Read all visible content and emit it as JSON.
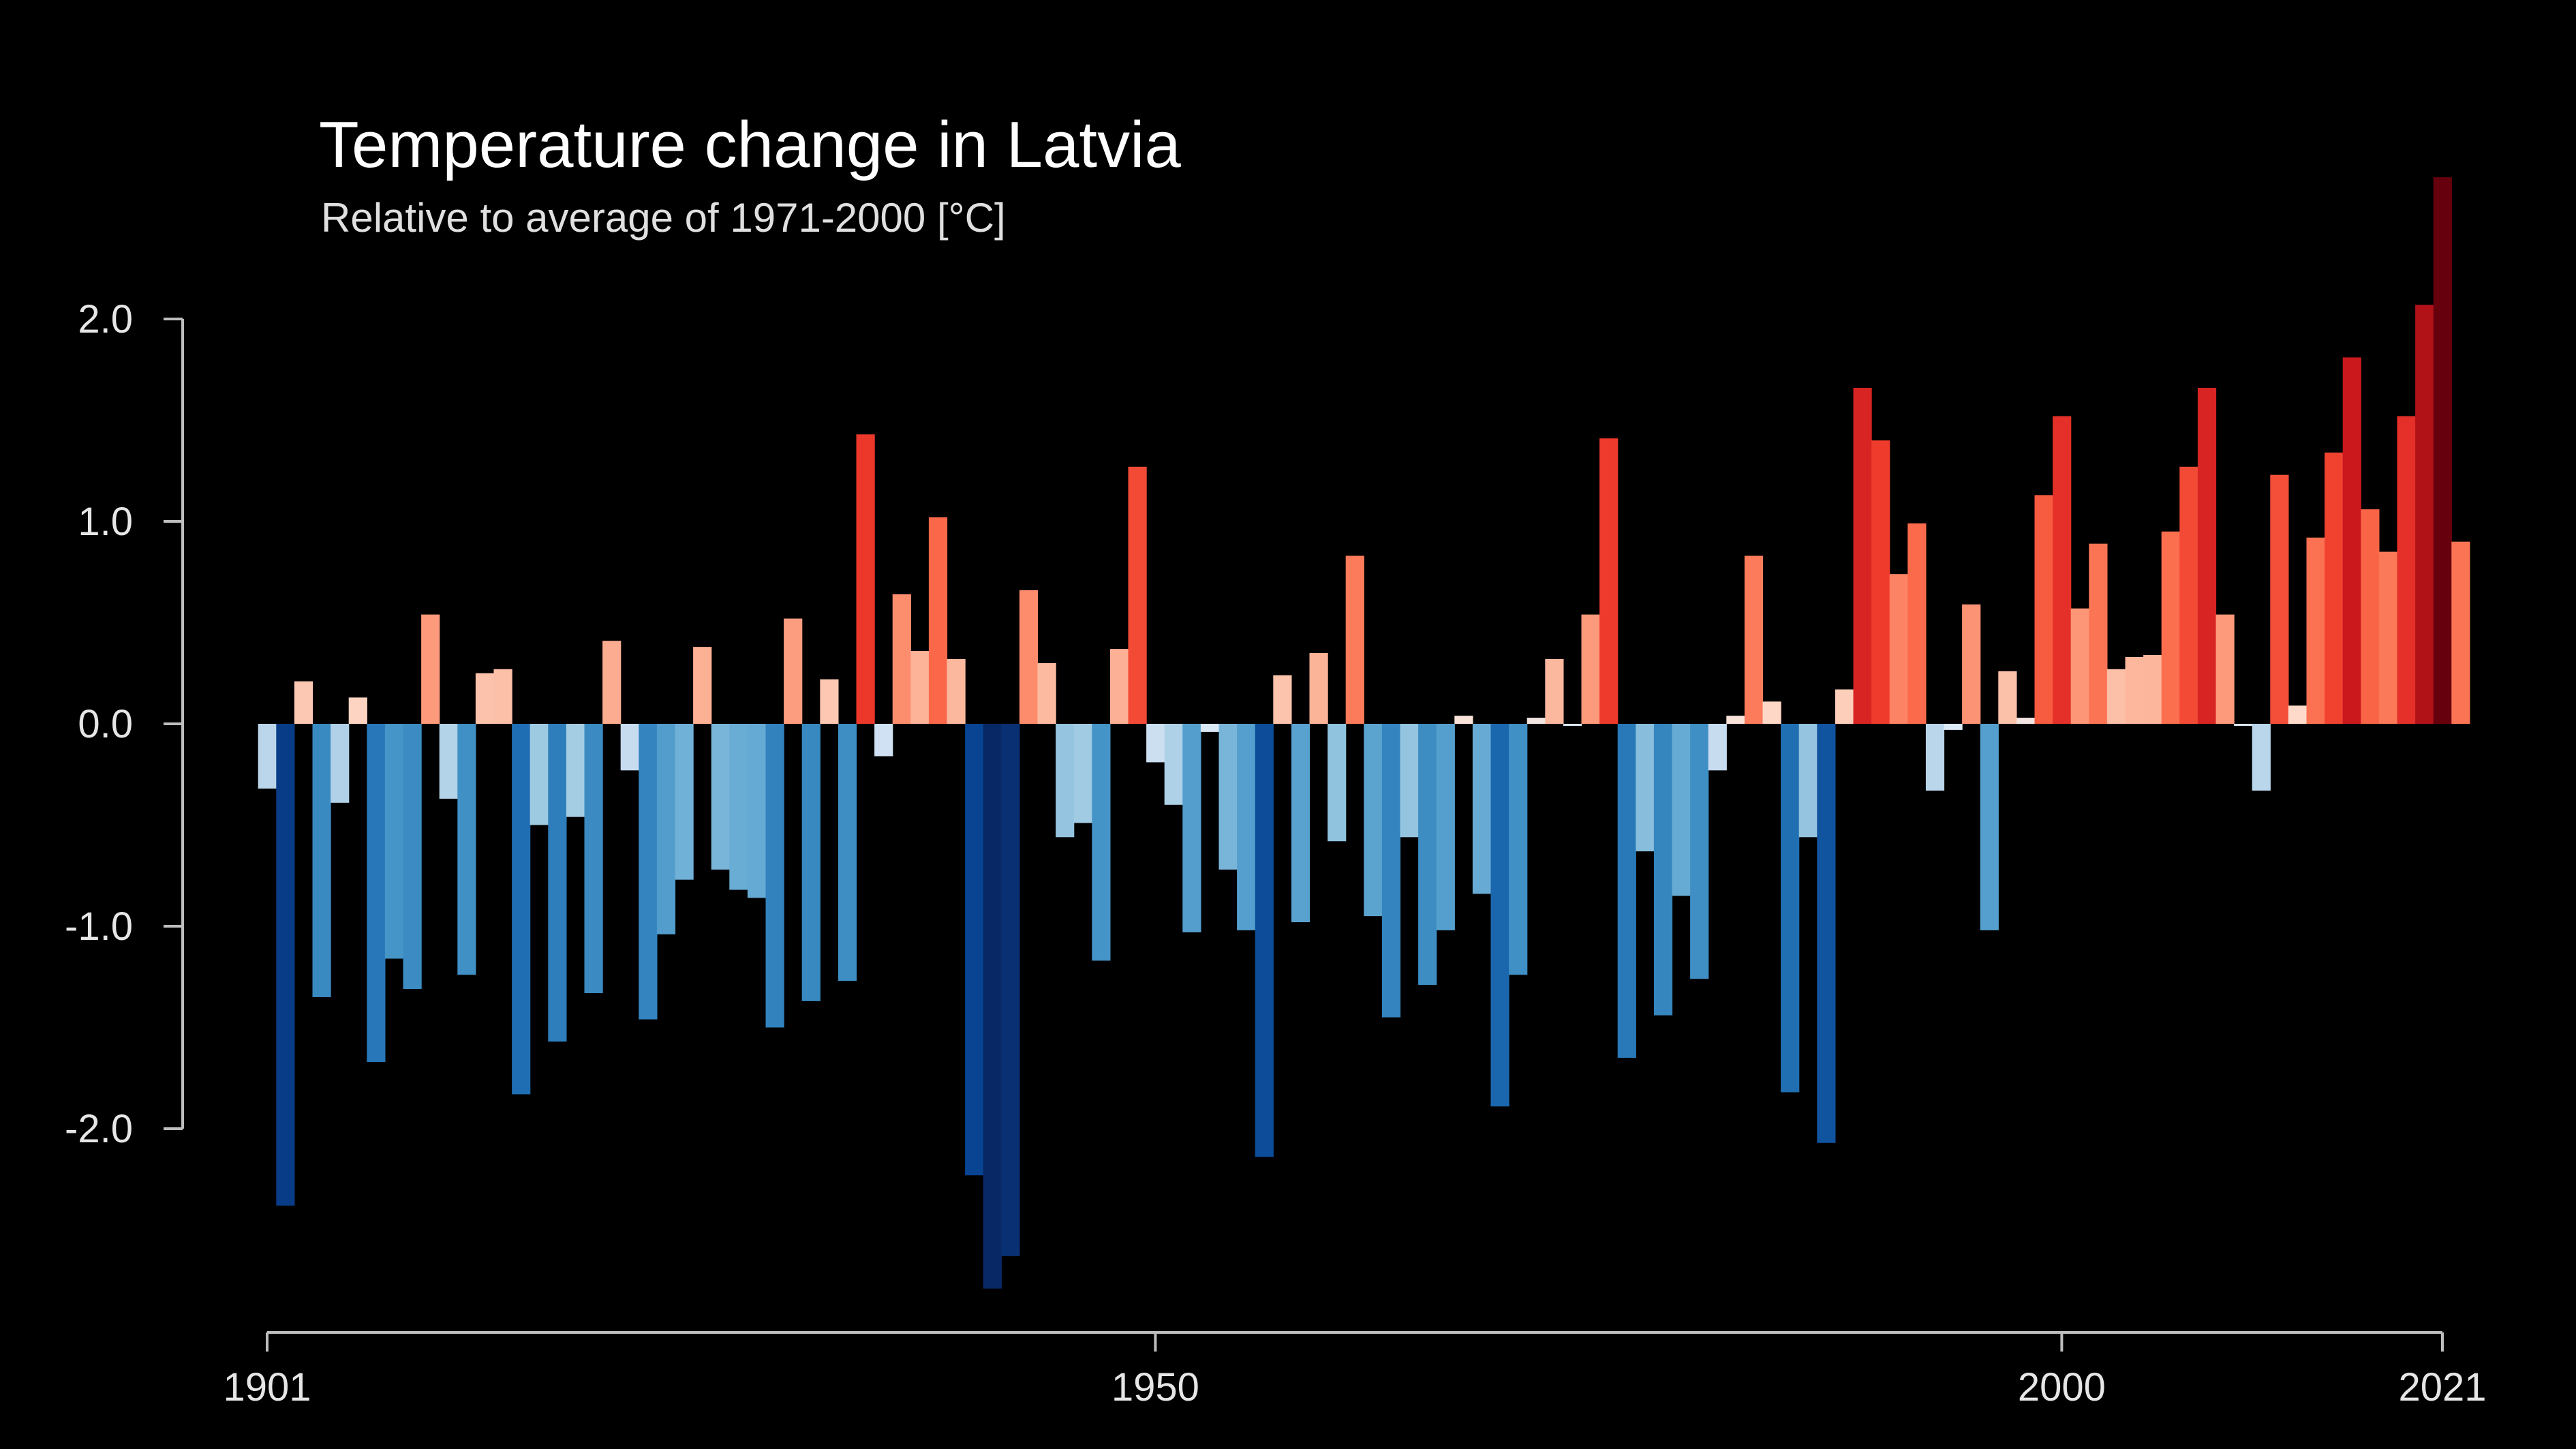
{
  "chart_data": {
    "type": "bar",
    "title": "Temperature change in Latvia",
    "subtitle": "Relative to average of 1971-2000  [°C]",
    "xlabel": "",
    "ylabel": "",
    "xlim": [
      1901,
      2021
    ],
    "ylim": [
      -2.8,
      2.7
    ],
    "y_ticks": [
      "2.0",
      "1.0",
      "0.0",
      "-1.0",
      "-2.0"
    ],
    "x_ticks": [
      "1901",
      "1950",
      "2000",
      "2021"
    ],
    "grid": false,
    "legend": "none",
    "start_year": 1901,
    "values": [
      -0.32,
      -2.38,
      0.21,
      -1.35,
      -0.39,
      0.13,
      -1.67,
      -1.16,
      -1.31,
      0.54,
      -0.37,
      -1.24,
      0.25,
      0.27,
      -1.83,
      -0.5,
      -1.57,
      -0.46,
      -1.33,
      0.41,
      -0.23,
      -1.46,
      -1.04,
      -0.77,
      0.38,
      -0.72,
      -0.82,
      -0.86,
      -1.5,
      0.52,
      -1.37,
      0.22,
      -1.27,
      1.43,
      -0.16,
      0.64,
      0.36,
      1.02,
      0.32,
      -2.23,
      -2.79,
      -2.63,
      0.66,
      0.3,
      -0.56,
      -0.49,
      -1.17,
      0.37,
      1.27,
      -0.19,
      -0.4,
      -1.03,
      -0.04,
      -0.72,
      -1.02,
      -2.14,
      0.24,
      -0.98,
      0.35,
      -0.58,
      0.83,
      -0.95,
      -1.45,
      -0.56,
      -1.29,
      -1.02,
      0.04,
      -0.84,
      -1.89,
      -1.24,
      0.03,
      0.32,
      -0.01,
      0.54,
      1.41,
      -1.65,
      -0.63,
      -1.44,
      -0.85,
      -1.26,
      -0.23,
      0.04,
      0.83,
      0.11,
      -1.82,
      -0.56,
      -2.07,
      0.17,
      1.66,
      1.4,
      0.74,
      0.99,
      -0.33,
      -0.03,
      0.59,
      -1.02,
      0.26,
      0.03,
      1.13,
      1.52,
      0.57,
      0.89,
      0.27,
      0.33,
      0.34,
      0.95,
      1.27,
      1.66,
      0.54,
      -0.01,
      -0.33,
      1.23,
      0.09,
      0.92,
      1.34,
      1.81,
      1.06,
      0.85,
      1.52,
      2.07,
      2.7,
      0.9
    ]
  }
}
